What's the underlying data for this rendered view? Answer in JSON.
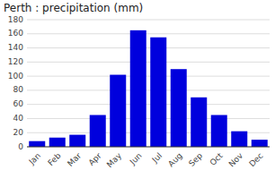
{
  "chart_data": {
    "type": "bar",
    "title": "Perth : precipitation (mm)",
    "categories": [
      "Jan",
      "Feb",
      "Mar",
      "Apr",
      "May",
      "Jun",
      "Jul",
      "Aug",
      "Sep",
      "Oct",
      "Nov",
      "Dec"
    ],
    "values": [
      8,
      13,
      17,
      45,
      102,
      165,
      155,
      110,
      70,
      45,
      22,
      10
    ],
    "color": "#0000dd",
    "ylim": [
      0,
      180
    ],
    "yticks": [
      0,
      20,
      40,
      60,
      80,
      100,
      120,
      140,
      160,
      180
    ],
    "grid": true
  }
}
